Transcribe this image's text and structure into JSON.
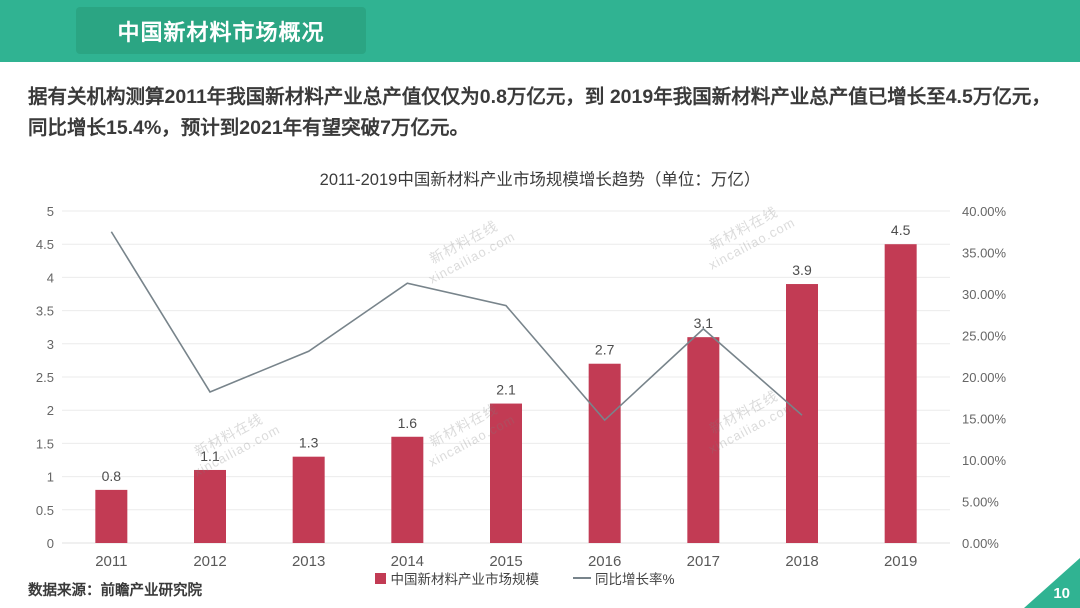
{
  "header": {
    "title": "中国新材料市场概况"
  },
  "intro_paragraph": "据有关机构测算2011年我国新材料产业总产值仅仅为0.8万亿元，到 2019年我国新材料产业总产值已增长至4.5万亿元，同比增长15.4%，预计到2021年有望突破7万亿元。",
  "chart_data": {
    "type": "bar",
    "title": "2011-2019中国新材料产业市场规模增长趋势（单位：万亿）",
    "categories": [
      "2011",
      "2012",
      "2013",
      "2014",
      "2015",
      "2016",
      "2017",
      "2018",
      "2019"
    ],
    "series": [
      {
        "name": "中国新材料产业市场规模",
        "type": "bar",
        "axis": "left",
        "values": [
          0.8,
          1.1,
          1.3,
          1.6,
          2.1,
          2.7,
          3.1,
          3.9,
          4.5
        ],
        "color": "#C23B54",
        "data_labels": [
          "0.8",
          "1.1",
          "1.3",
          "1.6",
          "2.1",
          "2.7",
          "3.1",
          "3.9",
          "4.5"
        ]
      },
      {
        "name": "同比增长率%",
        "type": "line",
        "axis": "right",
        "values": [
          37.5,
          18.2,
          23.1,
          31.3,
          28.6,
          14.8,
          25.8,
          15.4
        ],
        "color": "#78848B",
        "note": "line drawn through 2011-2018 positions only, no point at 2019"
      }
    ],
    "left_axis": {
      "min": 0,
      "max": 5,
      "step": 0.5,
      "ticks": [
        "0",
        "0.5",
        "1",
        "1.5",
        "2",
        "2.5",
        "3",
        "3.5",
        "4",
        "4.5",
        "5"
      ]
    },
    "right_axis": {
      "min": 0,
      "max": 40,
      "step": 5,
      "ticks": [
        "0.00%",
        "5.00%",
        "10.00%",
        "15.00%",
        "20.00%",
        "25.00%",
        "30.00%",
        "35.00%",
        "40.00%"
      ]
    },
    "grid": true,
    "legend_position": "bottom"
  },
  "legend": {
    "bar_label": "中国新材料产业市场规模",
    "line_label": "同比增长率%"
  },
  "source": {
    "text": "数据来源：前瞻产业研究院"
  },
  "page_number": "10",
  "watermark": {
    "line1": "新材料在线",
    "line2": "xincailiao.com"
  },
  "colors": {
    "header_green": "#30B392",
    "title_box_green": "#2BA583",
    "bar_red": "#C23B54",
    "line_gray": "#78848B",
    "grid_gray": "#EBEBEB",
    "axis_text": "#666666",
    "body_text": "#3A3A3A"
  }
}
